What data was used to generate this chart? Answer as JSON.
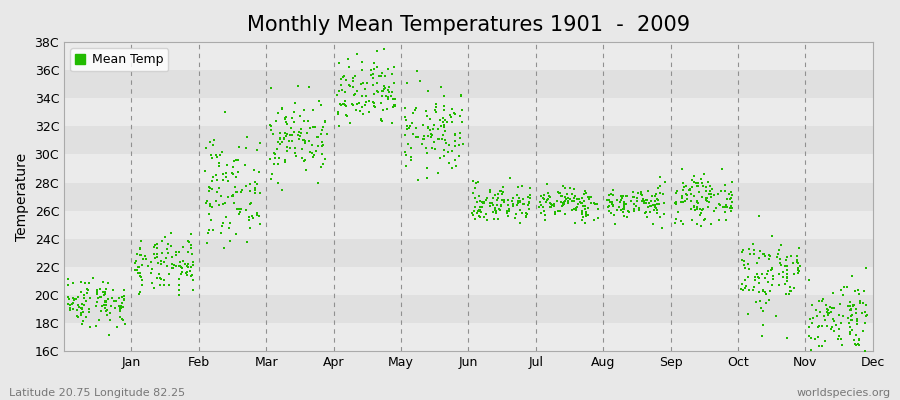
{
  "title": "Monthly Mean Temperatures 1901  -  2009",
  "ylabel": "Temperature",
  "ytick_labels": [
    "16C",
    "18C",
    "20C",
    "22C",
    "24C",
    "26C",
    "28C",
    "30C",
    "32C",
    "34C",
    "36C",
    "38C"
  ],
  "ytick_values": [
    16,
    18,
    20,
    22,
    24,
    26,
    28,
    30,
    32,
    34,
    36,
    38
  ],
  "ylim": [
    16,
    38
  ],
  "month_labels": [
    "Jan",
    "Feb",
    "Mar",
    "Apr",
    "May",
    "Jun",
    "Jul",
    "Aug",
    "Sep",
    "Oct",
    "Nov",
    "Dec"
  ],
  "marker_color": "#22bb00",
  "bg_color": "#e8e8e8",
  "band_colors": [
    "#ebebeb",
    "#e0e0e0",
    "#ebebeb",
    "#e0e0e0",
    "#ebebeb",
    "#e0e0e0",
    "#ebebeb",
    "#e0e0e0",
    "#ebebeb",
    "#e0e0e0",
    "#ebebeb"
  ],
  "footer_left": "Latitude 20.75 Longitude 82.25",
  "footer_right": "worldspecies.org",
  "legend_label": "Mean Temp",
  "title_fontsize": 15,
  "axis_fontsize": 10,
  "tick_fontsize": 9,
  "monthly_means": [
    19.5,
    22.0,
    27.5,
    31.2,
    34.2,
    31.5,
    26.5,
    26.5,
    26.5,
    26.8,
    21.5,
    18.5
  ],
  "monthly_stds": [
    0.9,
    1.0,
    1.8,
    1.4,
    1.3,
    1.5,
    0.7,
    0.6,
    0.6,
    0.8,
    1.5,
    1.3
  ],
  "n_years": 109,
  "random_seed": 42,
  "marker_size": 4
}
